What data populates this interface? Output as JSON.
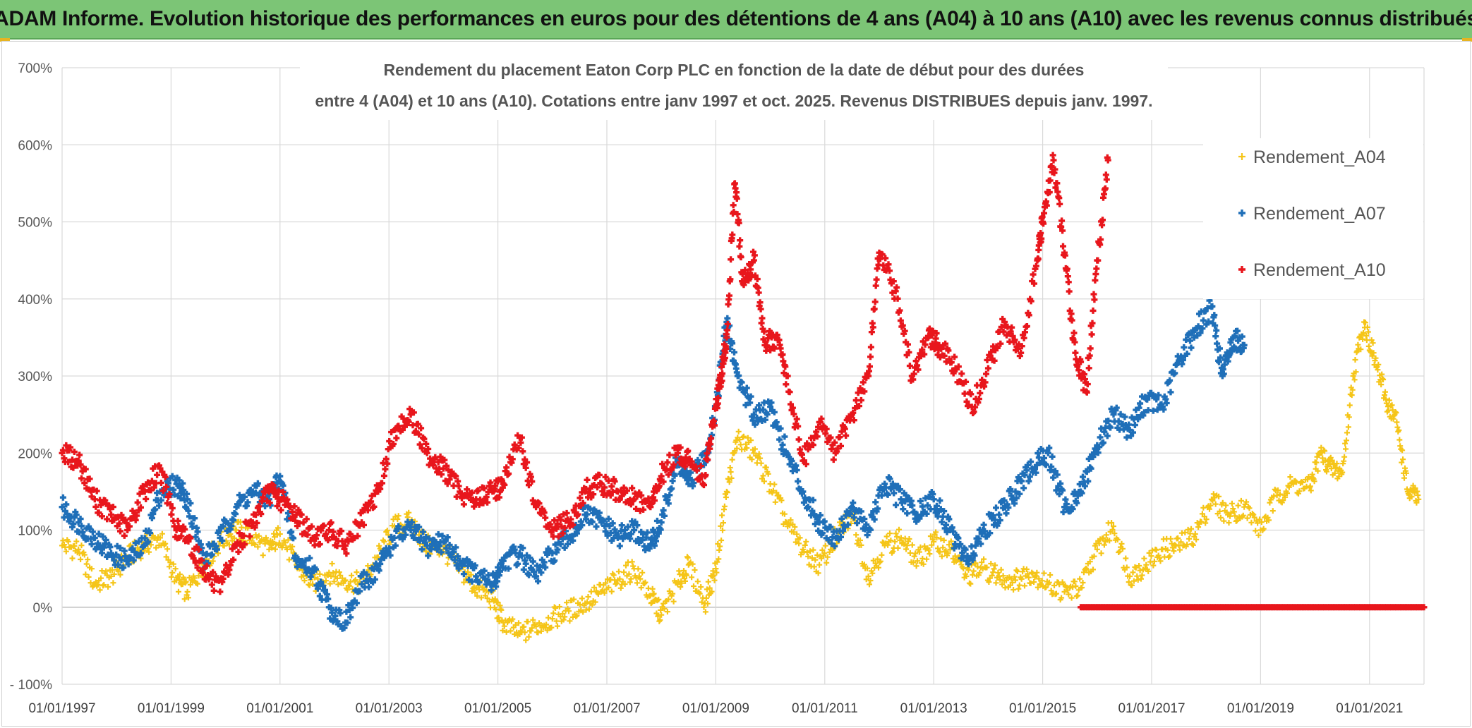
{
  "header": {
    "banner": "ADAM Informe. Evolution historique des performances en euros pour des détentions de 4 ans (A04) à 10 ans (A10) avec les revenus connus distribués"
  },
  "chart_data": {
    "type": "scatter",
    "title_line1": "Rendement du placement Eaton Corp PLC en fonction de la date de début pour des durées",
    "title_line2": "entre 4 (A04) et 10 ans (A10). Cotations entre janv 1997 et oct. 2025. Revenus DISTRIBUES depuis janv. 1997.",
    "y_axis": {
      "min": -100,
      "max": 700,
      "step": 100,
      "tick_labels": [
        "- 100%",
        "0%",
        "100%",
        "200%",
        "300%",
        "400%",
        "500%",
        "600%",
        "700%"
      ]
    },
    "x_axis": {
      "min": 1997.0,
      "max": 2022.0,
      "tick_labels": [
        "01/01/1997",
        "01/01/1999",
        "01/01/2001",
        "01/01/2003",
        "01/01/2005",
        "01/01/2007",
        "01/01/2009",
        "01/01/2011",
        "01/01/2013",
        "01/01/2015",
        "01/01/2017",
        "01/01/2019",
        "01/01/2021"
      ]
    },
    "grid": true,
    "legend_position": "top-right",
    "series": [
      {
        "name": "Rendement_A04",
        "color": "#f5c518",
        "x": [
          1997.0,
          1997.3,
          1997.6,
          1997.9,
          1998.2,
          1998.5,
          1998.8,
          1999.1,
          1999.3,
          1999.6,
          1999.9,
          2000.2,
          2000.5,
          2000.8,
          2001.0,
          2001.3,
          2001.6,
          2001.9,
          2002.2,
          2002.5,
          2002.8,
          2003.1,
          2003.4,
          2003.7,
          2004.0,
          2004.3,
          2004.6,
          2004.9,
          2005.1,
          2005.4,
          2005.7,
          2006.0,
          2006.3,
          2006.6,
          2006.9,
          2007.2,
          2007.5,
          2007.8,
          2008.0,
          2008.3,
          2008.5,
          2008.8,
          2009.0,
          2009.2,
          2009.4,
          2009.7,
          2010.0,
          2010.3,
          2010.6,
          2010.9,
          2011.2,
          2011.5,
          2011.8,
          2012.1,
          2012.4,
          2012.7,
          2013.0,
          2013.3,
          2013.6,
          2013.9,
          2014.2,
          2014.5,
          2014.8,
          2015.1,
          2015.4,
          2015.7,
          2016.0,
          2016.3,
          2016.6,
          2016.9,
          2017.2,
          2017.5,
          2017.8,
          2018.1,
          2018.4,
          2018.7,
          2019.0,
          2019.3,
          2019.6,
          2019.9,
          2020.1,
          2020.3,
          2020.5,
          2020.7,
          2020.9,
          2021.1,
          2021.3,
          2021.5,
          2021.7,
          2021.9
        ],
        "y": [
          80,
          75,
          30,
          40,
          65,
          80,
          90,
          35,
          20,
          55,
          85,
          100,
          90,
          75,
          95,
          55,
          30,
          45,
          35,
          30,
          65,
          105,
          110,
          80,
          75,
          50,
          25,
          10,
          -20,
          -35,
          -25,
          -15,
          -5,
          5,
          20,
          35,
          50,
          15,
          -10,
          30,
          55,
          5,
          50,
          150,
          220,
          200,
          160,
          110,
          75,
          55,
          90,
          120,
          40,
          80,
          90,
          60,
          85,
          75,
          40,
          50,
          40,
          35,
          45,
          30,
          20,
          25,
          75,
          105,
          40,
          55,
          75,
          80,
          95,
          140,
          120,
          130,
          100,
          145,
          160,
          155,
          200,
          180,
          175,
          300,
          370,
          320,
          270,
          240,
          150,
          140
        ]
      },
      {
        "name": "Rendement_A07",
        "color": "#1f6fb8",
        "x": [
          1997.0,
          1997.3,
          1997.6,
          1997.9,
          1998.2,
          1998.5,
          1998.8,
          1999.1,
          1999.3,
          1999.6,
          1999.9,
          2000.2,
          2000.5,
          2000.8,
          2001.0,
          2001.3,
          2001.6,
          2001.9,
          2002.2,
          2002.5,
          2002.8,
          2003.1,
          2003.4,
          2003.7,
          2004.0,
          2004.3,
          2004.6,
          2004.9,
          2005.1,
          2005.4,
          2005.7,
          2006.0,
          2006.3,
          2006.6,
          2006.9,
          2007.2,
          2007.5,
          2007.8,
          2008.0,
          2008.3,
          2008.5,
          2008.8,
          2009.0,
          2009.2,
          2009.4,
          2009.7,
          2010.0,
          2010.3,
          2010.6,
          2010.9,
          2011.2,
          2011.5,
          2011.8,
          2012.1,
          2012.4,
          2012.7,
          2013.0,
          2013.3,
          2013.6,
          2013.9,
          2014.2,
          2014.5,
          2014.8,
          2015.1,
          2015.4,
          2015.7,
          2016.0,
          2016.3,
          2016.6,
          2016.9,
          2017.2,
          2017.5,
          2017.8,
          2018.1,
          2018.3,
          2018.5,
          2018.7
        ],
        "y": [
          130,
          110,
          90,
          70,
          60,
          80,
          150,
          160,
          140,
          60,
          90,
          130,
          150,
          140,
          170,
          60,
          50,
          0,
          -20,
          30,
          50,
          90,
          100,
          80,
          85,
          60,
          40,
          30,
          60,
          70,
          40,
          70,
          90,
          120,
          110,
          90,
          100,
          80,
          110,
          190,
          160,
          190,
          260,
          370,
          300,
          250,
          260,
          200,
          150,
          110,
          90,
          130,
          100,
          160,
          140,
          120,
          140,
          100,
          60,
          100,
          120,
          150,
          180,
          200,
          130,
          150,
          210,
          250,
          230,
          270,
          260,
          320,
          360,
          390,
          300,
          350,
          340
        ]
      },
      {
        "name": "Rendement_A10",
        "color": "#e8161c",
        "x": [
          1997.0,
          1997.3,
          1997.6,
          1997.9,
          1998.2,
          1998.5,
          1998.8,
          1999.1,
          1999.3,
          1999.6,
          1999.9,
          2000.2,
          2000.5,
          2000.8,
          2001.0,
          2001.3,
          2001.6,
          2001.9,
          2002.2,
          2002.5,
          2002.8,
          2003.1,
          2003.4,
          2003.7,
          2004.0,
          2004.3,
          2004.6,
          2004.9,
          2005.1,
          2005.4,
          2005.7,
          2006.0,
          2006.3,
          2006.6,
          2006.9,
          2007.2,
          2007.5,
          2007.8,
          2008.0,
          2008.3,
          2008.5,
          2008.8,
          2009.0,
          2009.1,
          2009.2,
          2009.35,
          2009.5,
          2009.7,
          2009.9,
          2010.1,
          2010.3,
          2010.6,
          2010.9,
          2011.2,
          2011.5,
          2011.8,
          2012.0,
          2012.3,
          2012.6,
          2012.9,
          2013.1,
          2013.4,
          2013.7,
          2014.0,
          2014.3,
          2014.6,
          2014.9,
          2015.0,
          2015.2,
          2015.4,
          2015.6,
          2015.8,
          2016.0,
          2016.2
        ],
        "y": [
          200,
          190,
          140,
          120,
          100,
          150,
          180,
          100,
          90,
          50,
          20,
          80,
          110,
          150,
          140,
          120,
          90,
          100,
          80,
          110,
          150,
          230,
          250,
          200,
          180,
          150,
          140,
          150,
          160,
          220,
          130,
          100,
          110,
          150,
          160,
          150,
          140,
          130,
          170,
          200,
          190,
          170,
          260,
          300,
          350,
          550,
          420,
          450,
          340,
          350,
          300,
          190,
          240,
          200,
          250,
          300,
          460,
          410,
          300,
          350,
          340,
          310,
          260,
          310,
          370,
          330,
          450,
          500,
          580,
          460,
          330,
          280,
          450,
          580
        ]
      }
    ]
  }
}
